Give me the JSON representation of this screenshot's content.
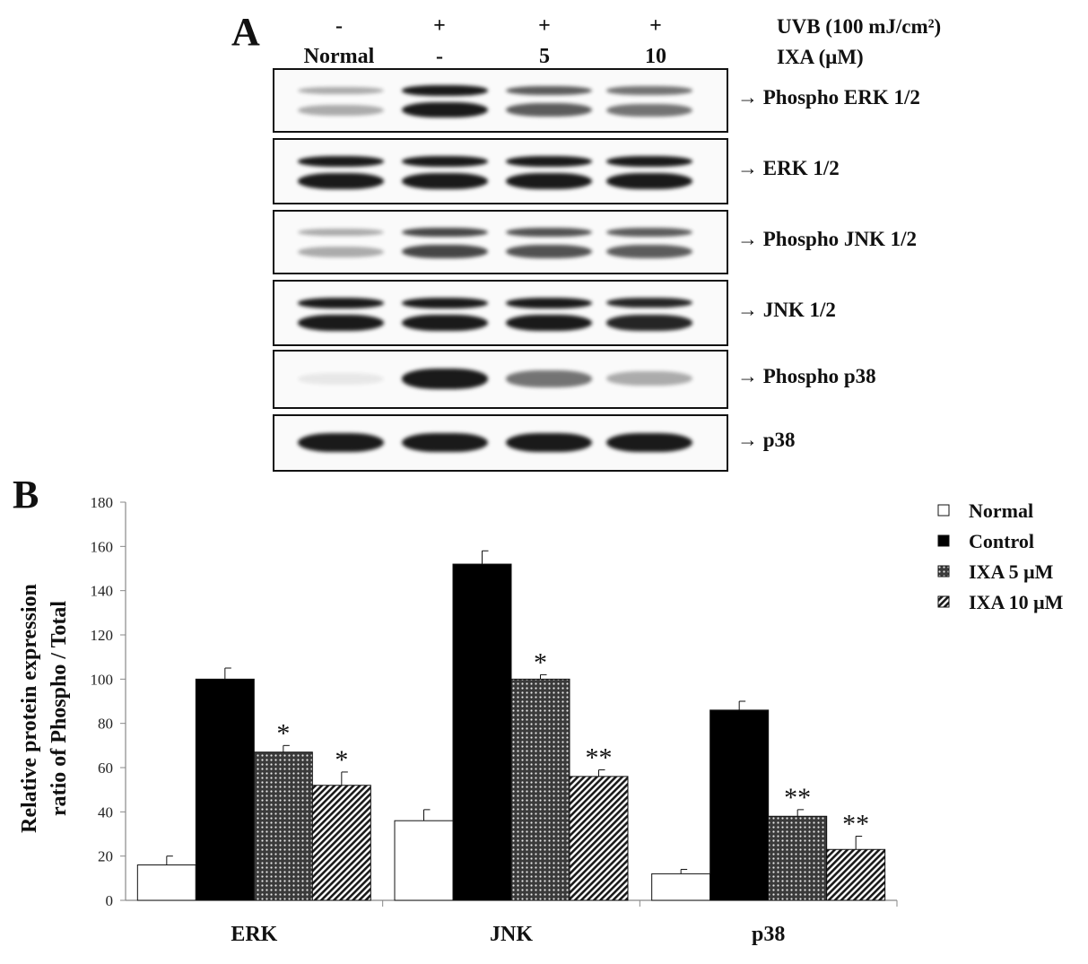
{
  "panel_a": {
    "letter": "A",
    "treatment_rows": [
      {
        "label": "UVB (100 mJ/cm²)",
        "values": [
          "-",
          "+",
          "+",
          "+"
        ]
      },
      {
        "label": "IXA  (μM)",
        "values": [
          "Normal",
          "-",
          "5",
          "10"
        ]
      }
    ],
    "blots": [
      {
        "label": "→  Phospho  ERK 1/2",
        "band_intensity": [
          0.35,
          1.0,
          0.7,
          0.6
        ],
        "band_count": 2
      },
      {
        "label": "→  ERK 1/2",
        "band_intensity": [
          1.0,
          1.0,
          1.0,
          1.0
        ],
        "band_count": 2
      },
      {
        "label": "→ Phospho  JNK 1/2",
        "band_intensity": [
          0.35,
          0.8,
          0.75,
          0.7
        ],
        "band_count": 2
      },
      {
        "label": "→ JNK 1/2",
        "band_intensity": [
          1.0,
          1.0,
          1.0,
          0.95
        ],
        "band_count": 2
      },
      {
        "label": "→ Phospho  p38",
        "band_intensity": [
          0.08,
          1.0,
          0.6,
          0.35
        ],
        "band_count": 1
      },
      {
        "label": "→ p38",
        "band_intensity": [
          1.0,
          1.0,
          1.0,
          1.0
        ],
        "band_count": 1
      }
    ]
  },
  "panel_b": {
    "letter": "B"
  },
  "chart_data": {
    "type": "bar",
    "categories": [
      "ERK",
      "JNK",
      "p38"
    ],
    "series": [
      {
        "name": "Normal",
        "values": [
          16,
          36,
          12
        ],
        "errors": [
          4,
          5,
          2
        ],
        "sig": [
          "",
          "",
          ""
        ],
        "pattern": "white"
      },
      {
        "name": "Control",
        "values": [
          100,
          152,
          86
        ],
        "errors": [
          5,
          6,
          4
        ],
        "sig": [
          "",
          "",
          ""
        ],
        "pattern": "black"
      },
      {
        "name": "IXA 5 μM",
        "values": [
          67,
          100,
          38
        ],
        "errors": [
          3,
          2,
          3
        ],
        "sig": [
          "*",
          "*",
          "**"
        ],
        "pattern": "dots"
      },
      {
        "name": "IXA 10 μM",
        "values": [
          52,
          56,
          23
        ],
        "errors": [
          6,
          3,
          6
        ],
        "sig": [
          "*",
          "**",
          "**"
        ],
        "pattern": "hatch"
      }
    ],
    "ylabel_lines": [
      "Relative protein expression",
      "ratio of Phospho / Total"
    ],
    "ylim": [
      0,
      180
    ],
    "yticks": [
      0,
      20,
      40,
      60,
      80,
      100,
      120,
      140,
      160,
      180
    ],
    "grid": false,
    "legend_position": "top-right"
  }
}
